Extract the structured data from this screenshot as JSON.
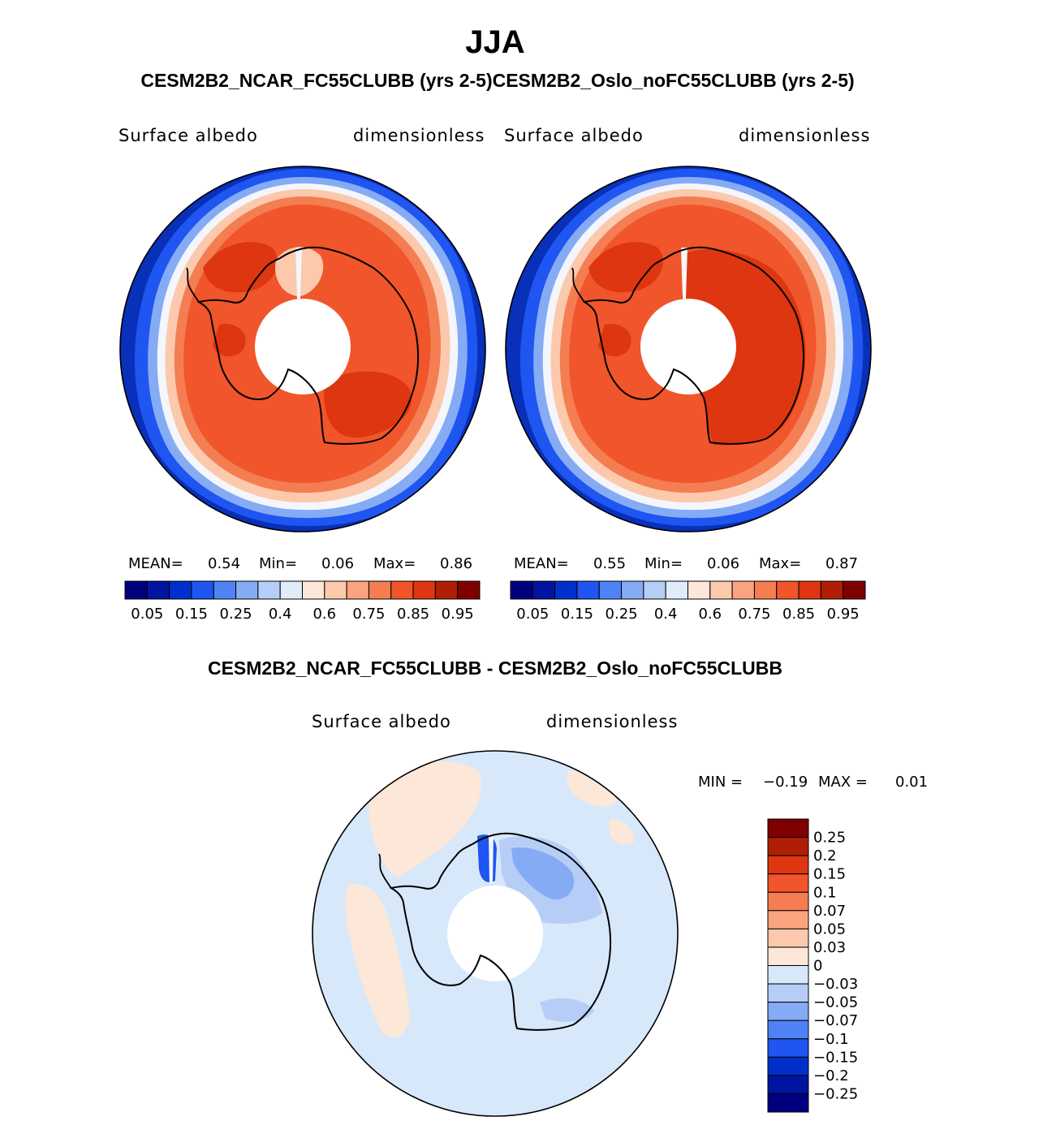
{
  "title": "JJA",
  "subtitle": "CESM2B2_NCAR_FC55CLUBB (yrs 2-5)CESM2B2_Oslo_noFC55CLUBB (yrs 2-5)",
  "panels": [
    {
      "variable": "Surface albedo",
      "units": "dimensionless",
      "stats": {
        "mean_label": "MEAN=",
        "mean": "0.54",
        "min_label": "Min=",
        "min": "0.06",
        "max_label": "Max=",
        "max": "0.86"
      }
    },
    {
      "variable": "Surface albedo",
      "units": "dimensionless",
      "stats": {
        "mean_label": "MEAN=",
        "mean": "0.55",
        "min_label": "Min=",
        "min": "0.06",
        "max_label": "Max=",
        "max": "0.87"
      }
    }
  ],
  "diff": {
    "title": "CESM2B2_NCAR_FC55CLUBB - CESM2B2_Oslo_noFC55CLUBB",
    "variable": "Surface albedo",
    "units": "dimensionless",
    "minmax": {
      "min_label": "MIN =",
      "min": "−0.19",
      "max_label": "MAX =",
      "max": "0.01"
    }
  },
  "colorbar_top": {
    "colors": [
      "#00007f",
      "#0014a0",
      "#0030cc",
      "#1f55f0",
      "#4f83f5",
      "#86abf5",
      "#b6cef7",
      "#dfecfa",
      "#fde7d8",
      "#fcc9ad",
      "#f9a47e",
      "#f57d52",
      "#f0552c",
      "#dd3610",
      "#b01e05",
      "#7f0000"
    ],
    "tick_labels": [
      "0.05",
      "0.15",
      "0.25",
      "0.4",
      "0.6",
      "0.75",
      "0.85",
      "0.95"
    ]
  },
  "colorbar_diff": {
    "colors_top_to_bottom": [
      "#7f0000",
      "#b01e05",
      "#dd3610",
      "#f0552c",
      "#f57d52",
      "#f9a47e",
      "#fcc9ad",
      "#fde7d8",
      "#d7e8fb",
      "#b6cef7",
      "#86abf5",
      "#4f83f5",
      "#1f55f0",
      "#0030cc",
      "#0014a0",
      "#00007f"
    ],
    "tick_labels": [
      "0.25",
      "0.2",
      "0.15",
      "0.1",
      "0.07",
      "0.05",
      "0.03",
      "0",
      "−0.03",
      "−0.05",
      "−0.07",
      "−0.1",
      "−0.15",
      "−0.2",
      "−0.25"
    ]
  },
  "map_colors": {
    "ocean_deep": "#0830b8",
    "ocean_mid": "#1f55f0",
    "ice_edge_blue": "#86abf5",
    "ice_edge_white": "#f4f6fb",
    "ice_peach": "#fcc9ad",
    "ice_orange": "#f57d52",
    "ice_main": "#f0552c",
    "ice_dark": "#dd3610",
    "diff_base": "#d7e8fb",
    "diff_pos": "#fde7d8",
    "diff_neg1": "#b6cef7",
    "diff_neg2": "#86abf5",
    "diff_neg3": "#1f55f0"
  }
}
